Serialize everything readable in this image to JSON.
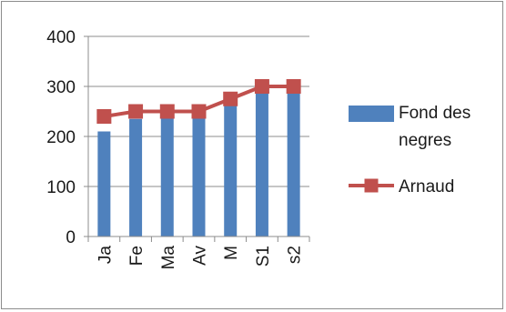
{
  "chart_data": {
    "type": "bar",
    "categories": [
      "Ja",
      "Fe",
      "Ma",
      "Av",
      "M",
      "S1",
      "s2"
    ],
    "ylim": [
      0,
      400
    ],
    "yticks": [
      0,
      100,
      200,
      300,
      400
    ],
    "grid": true,
    "legend_position": "right",
    "series": [
      {
        "name": "Fond des negres",
        "kind": "bar",
        "color": "#4f81bd",
        "values": [
          210,
          235,
          240,
          240,
          265,
          290,
          290
        ]
      },
      {
        "name": "Arnaud",
        "kind": "line",
        "marker": "square",
        "color": "#c0504d",
        "values": [
          240,
          250,
          250,
          250,
          275,
          300,
          300
        ]
      }
    ],
    "legend": [
      {
        "lines": [
          "Fond des",
          "negres"
        ]
      },
      {
        "lines": [
          "Arnaud"
        ]
      }
    ]
  }
}
